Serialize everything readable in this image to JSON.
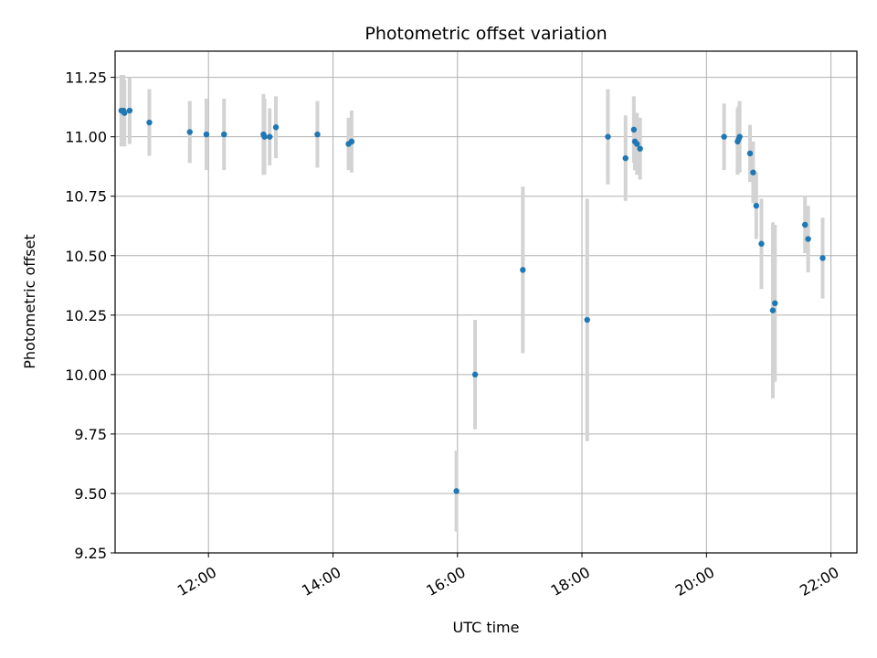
{
  "chart_data": {
    "type": "scatter",
    "title": "Photometric offset variation",
    "xlabel": "UTC time",
    "ylabel": "Photometric offset",
    "xlim": [
      "10:30",
      "22:25"
    ],
    "ylim": [
      9.25,
      11.36
    ],
    "x_ticks": [
      "12:00",
      "14:00",
      "16:00",
      "18:00",
      "20:00",
      "22:00"
    ],
    "y_ticks": [
      "9.25",
      "9.50",
      "9.75",
      "10.00",
      "10.25",
      "10.50",
      "10.75",
      "11.00",
      "11.25"
    ],
    "grid": true,
    "point_color": "#1f77b4",
    "errorbar_color": "#d3d3d3",
    "points": [
      {
        "t": "10:36",
        "y": 11.11,
        "err": 0.15
      },
      {
        "t": "10:38",
        "y": 11.11,
        "err": 0.15
      },
      {
        "t": "10:39",
        "y": 11.1,
        "err": 0.14
      },
      {
        "t": "10:44",
        "y": 11.11,
        "err": 0.14
      },
      {
        "t": "11:03",
        "y": 11.06,
        "err": 0.14
      },
      {
        "t": "11:42",
        "y": 11.02,
        "err": 0.13
      },
      {
        "t": "11:58",
        "y": 11.01,
        "err": 0.15
      },
      {
        "t": "12:15",
        "y": 11.01,
        "err": 0.15
      },
      {
        "t": "12:53",
        "y": 11.01,
        "err": 0.17
      },
      {
        "t": "12:54",
        "y": 11.0,
        "err": 0.16
      },
      {
        "t": "12:59",
        "y": 11.0,
        "err": 0.12
      },
      {
        "t": "13:05",
        "y": 11.04,
        "err": 0.13
      },
      {
        "t": "13:45",
        "y": 11.01,
        "err": 0.14
      },
      {
        "t": "14:15",
        "y": 10.97,
        "err": 0.11
      },
      {
        "t": "14:18",
        "y": 10.98,
        "err": 0.13
      },
      {
        "t": "15:59",
        "y": 9.51,
        "err": 0.17
      },
      {
        "t": "16:17",
        "y": 10.0,
        "err": 0.23
      },
      {
        "t": "17:03",
        "y": 10.44,
        "err": 0.35
      },
      {
        "t": "18:05",
        "y": 10.23,
        "err": 0.51
      },
      {
        "t": "18:25",
        "y": 11.0,
        "err": 0.2
      },
      {
        "t": "18:42",
        "y": 10.91,
        "err": 0.18
      },
      {
        "t": "18:50",
        "y": 11.03,
        "err": 0.14
      },
      {
        "t": "18:51",
        "y": 10.98,
        "err": 0.12
      },
      {
        "t": "18:53",
        "y": 10.97,
        "err": 0.13
      },
      {
        "t": "18:56",
        "y": 10.95,
        "err": 0.13
      },
      {
        "t": "20:17",
        "y": 11.0,
        "err": 0.14
      },
      {
        "t": "20:30",
        "y": 10.98,
        "err": 0.14
      },
      {
        "t": "20:31",
        "y": 10.99,
        "err": 0.14
      },
      {
        "t": "20:32",
        "y": 11.0,
        "err": 0.15
      },
      {
        "t": "20:42",
        "y": 10.93,
        "err": 0.12
      },
      {
        "t": "20:45",
        "y": 10.85,
        "err": 0.13
      },
      {
        "t": "20:48",
        "y": 10.71,
        "err": 0.14
      },
      {
        "t": "20:53",
        "y": 10.55,
        "err": 0.19
      },
      {
        "t": "21:04",
        "y": 10.27,
        "err": 0.37
      },
      {
        "t": "21:06",
        "y": 10.3,
        "err": 0.33
      },
      {
        "t": "21:35",
        "y": 10.63,
        "err": 0.12
      },
      {
        "t": "21:38",
        "y": 10.57,
        "err": 0.14
      },
      {
        "t": "21:52",
        "y": 10.49,
        "err": 0.17
      }
    ]
  }
}
